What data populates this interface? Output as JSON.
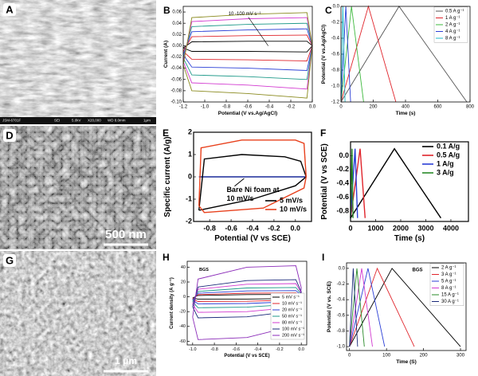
{
  "chart_data": [
    {
      "type": "image",
      "panel": "A",
      "footer": [
        "JSM-6701F",
        "SEI",
        "5.0kV",
        "X20,000",
        "WD 8.0mm",
        "1μm"
      ]
    },
    {
      "type": "line",
      "panel": "B",
      "ylabel": "Current (A)",
      "xlabel": "Potential (V vs.Ag/AgCl)",
      "annotation": "10 -100 mV s⁻¹",
      "xlim": [
        -1.2,
        0.0
      ],
      "xticks": [
        -1.2,
        {
          "value": -1.0,
          "label": "-1.0"
        },
        -0.8,
        -0.6,
        -0.4,
        -0.2,
        {
          "value": 0.0,
          "label": "0.0"
        }
      ],
      "ylim": [
        -0.1,
        0.07
      ],
      "yticks": [
        {
          "value": -0.1,
          "label": "-0.10"
        },
        -0.08,
        -0.06,
        -0.04,
        -0.02,
        {
          "value": 0,
          "label": "0.00"
        },
        0.02,
        0.04,
        0.06
      ],
      "series": [
        {
          "color": "#000000",
          "x": [
            -1.2,
            -1.12,
            -0.6,
            -0.05,
            0.0,
            -0.05,
            -0.6,
            -1.12,
            -1.2
          ],
          "values": [
            -0.004,
            0.007,
            0.008,
            0.008,
            0.0,
            -0.011,
            -0.01,
            -0.01,
            -0.004
          ]
        },
        {
          "color": "#e0242b",
          "x": [
            -1.2,
            -1.12,
            -0.6,
            -0.05,
            0.0,
            -0.05,
            -0.6,
            -1.12,
            -1.2
          ],
          "values": [
            -0.01,
            0.016,
            0.018,
            0.019,
            0.0,
            -0.027,
            -0.025,
            -0.024,
            -0.01
          ]
        },
        {
          "color": "#2b3fd6",
          "x": [
            -1.2,
            -1.12,
            -0.6,
            -0.05,
            0.0,
            -0.05,
            -0.6,
            -1.12,
            -1.2
          ],
          "values": [
            -0.016,
            0.025,
            0.028,
            0.03,
            0.0,
            -0.044,
            -0.04,
            -0.038,
            -0.016
          ]
        },
        {
          "color": "#1f9a8a",
          "x": [
            -1.2,
            -1.12,
            -0.6,
            -0.05,
            0.0,
            -0.05,
            -0.6,
            -1.12,
            -1.2
          ],
          "values": [
            -0.022,
            0.034,
            0.038,
            0.04,
            0.0,
            -0.06,
            -0.055,
            -0.052,
            -0.022
          ]
        },
        {
          "color": "#d23ad0",
          "x": [
            -1.2,
            -1.12,
            -0.6,
            -0.05,
            0.0,
            -0.05,
            -0.6,
            -1.12,
            -1.2
          ],
          "values": [
            -0.028,
            0.043,
            0.048,
            0.05,
            0.0,
            -0.077,
            -0.07,
            -0.066,
            -0.028
          ]
        },
        {
          "color": "#8a8a1e",
          "x": [
            -1.2,
            -1.12,
            -0.6,
            -0.05,
            0.0,
            -0.05,
            -0.6,
            -1.12,
            -1.2
          ],
          "values": [
            -0.034,
            0.05,
            0.056,
            0.059,
            0.0,
            -0.093,
            -0.085,
            -0.08,
            -0.034
          ]
        }
      ]
    },
    {
      "type": "line",
      "panel": "C",
      "ylabel": "Potential (V vs.Ag/AgCl)",
      "xlabel": "Time (s)",
      "legend": "upper right",
      "xlim": [
        0,
        800
      ],
      "xticks": [
        0,
        200,
        400,
        600,
        800
      ],
      "ylim": [
        -1.2,
        0.0
      ],
      "yticks": [
        -1.2,
        {
          "value": -1.0,
          "label": "-1.0"
        },
        -0.8,
        -0.6,
        -0.4,
        -0.2,
        {
          "value": 0.0,
          "label": "0.0"
        }
      ],
      "series": [
        {
          "name": "0.5 A g⁻¹",
          "color": "#555555",
          "x": [
            0,
            360,
            780
          ],
          "values": [
            -1.2,
            0.0,
            -1.2
          ]
        },
        {
          "name": "1 A g⁻¹",
          "color": "#e0242b",
          "x": [
            0,
            170,
            340
          ],
          "values": [
            -1.2,
            0.0,
            -1.2
          ]
        },
        {
          "name": "2 A g⁻¹",
          "color": "#3cb83c",
          "x": [
            0,
            65,
            140
          ],
          "values": [
            -1.2,
            0.0,
            -1.2
          ]
        },
        {
          "name": "4 A g⁻¹",
          "color": "#2b3fd6",
          "x": [
            0,
            30,
            60
          ],
          "values": [
            -1.2,
            0.0,
            -1.2
          ]
        },
        {
          "name": "8 A g⁻¹",
          "color": "#1fb8c8",
          "x": [
            0,
            12,
            25
          ],
          "values": [
            -1.2,
            0.0,
            -1.2
          ]
        }
      ]
    },
    {
      "type": "image",
      "panel": "D",
      "scale": "500 nm"
    },
    {
      "type": "line",
      "panel": "E",
      "ylabel": "Specific current (A/g)",
      "xlabel": "Potential (V vs SCE)",
      "annotation": [
        "Bare Ni foam at",
        "10 mV/s"
      ],
      "legend": "lower right",
      "xlim": [
        -0.95,
        0.15
      ],
      "xticks": [
        -0.8,
        -0.6,
        -0.4,
        -0.2,
        {
          "value": 0.0,
          "label": "0.0"
        }
      ],
      "ylim": [
        -2,
        2
      ],
      "yticks": [
        -2,
        -1,
        0,
        1,
        2
      ],
      "series": [
        {
          "color": "#1a2a9a",
          "x": [
            -0.9,
            0.1
          ],
          "values": [
            0,
            0
          ]
        },
        {
          "name": "5 mV/s",
          "color": "#000000",
          "x": [
            -0.9,
            -0.85,
            -0.5,
            -0.1,
            0.05,
            0.1,
            0.0,
            -0.4,
            -0.85,
            -0.9
          ],
          "values": [
            -1.5,
            0.8,
            1.0,
            0.9,
            0.7,
            0.0,
            -0.4,
            -1.0,
            -1.45,
            -1.5
          ]
        },
        {
          "name": "10 mV/s",
          "color": "#e8401c",
          "x": [
            -0.9,
            -0.88,
            -0.5,
            0.0,
            0.08,
            0.1,
            0.08,
            -0.3,
            -0.85,
            -0.9
          ],
          "values": [
            -1.3,
            1.3,
            1.65,
            1.65,
            1.5,
            0.0,
            -0.5,
            -1.4,
            -1.6,
            -1.3
          ]
        }
      ]
    },
    {
      "type": "line",
      "panel": "F",
      "ylabel": "Potential (V vs SCE)",
      "xlabel": "Time (s)",
      "legend": "upper right",
      "xlim": [
        0,
        4700
      ],
      "xticks": [
        0,
        1000,
        2000,
        3000,
        4000
      ],
      "ylim": [
        -0.95,
        0.2
      ],
      "yticks": [
        -0.8,
        -0.6,
        -0.4,
        -0.2,
        {
          "value": 0.0,
          "label": "0.0"
        }
      ],
      "series": [
        {
          "name": "0.1 A/g",
          "color": "#000000",
          "x": [
            0,
            1750,
            3600
          ],
          "values": [
            -0.9,
            0.1,
            -0.9
          ]
        },
        {
          "name": "0.5 A/g",
          "color": "#e0242b",
          "x": [
            0,
            380,
            580
          ],
          "values": [
            -0.9,
            0.1,
            -0.9
          ]
        },
        {
          "name": "1 A/g",
          "color": "#2b3fd6",
          "x": [
            0,
            180,
            280
          ],
          "values": [
            -0.9,
            0.1,
            -0.9
          ]
        },
        {
          "name": "3 A/g",
          "color": "#2a8a2a",
          "x": [
            0,
            60,
            100
          ],
          "values": [
            -0.9,
            0.1,
            -0.9
          ]
        }
      ]
    },
    {
      "type": "image",
      "panel": "G",
      "scale": "1 μm"
    },
    {
      "type": "line",
      "panel": "H",
      "ylabel": "Current density (A g⁻¹)",
      "xlabel": "Potential (V vs SCE)",
      "annotation": "BGS",
      "legend": "lower right",
      "xlim": [
        -1.05,
        0.05
      ],
      "xticks": [
        {
          "value": -1.0,
          "label": "-1.0"
        },
        -0.8,
        -0.6,
        -0.4,
        -0.2,
        {
          "value": 0.0,
          "label": "0.0"
        }
      ],
      "ylim": [
        -65,
        48
      ],
      "yticks": [
        -60,
        -40,
        -20,
        0,
        20,
        40
      ],
      "series": [
        {
          "name": "5 mV s⁻¹",
          "color": "#000000",
          "x": [
            -1.0,
            -0.95,
            -0.5,
            -0.05,
            0.0,
            -0.05,
            -0.5,
            -0.95,
            -1.0
          ],
          "values": [
            -1.5,
            1.8,
            3,
            3.2,
            0.9,
            -2.1,
            -3,
            -3.2,
            -1.5
          ]
        },
        {
          "name": "10 mV s⁻¹",
          "color": "#e0242b",
          "x": [
            -1.0,
            -0.95,
            -0.5,
            -0.05,
            0.0,
            -0.05,
            -0.5,
            -0.95,
            -1.0
          ],
          "values": [
            -3,
            3,
            5,
            5.3,
            1.5,
            -4.2,
            -6,
            -6.3,
            -3
          ]
        },
        {
          "name": "20 mV s⁻¹",
          "color": "#2b3fd6",
          "x": [
            -1.0,
            -0.95,
            -0.5,
            -0.05,
            0.0,
            -0.05,
            -0.5,
            -0.95,
            -1.0
          ],
          "values": [
            -4.5,
            4.8,
            8,
            8.4,
            2.4,
            -6.3,
            -9,
            -9.5,
            -4.5
          ]
        },
        {
          "name": "50 mV s⁻¹",
          "color": "#1f9a8a",
          "x": [
            -1.0,
            -0.95,
            -0.5,
            -0.05,
            0.0,
            -0.05,
            -0.5,
            -0.95,
            -1.0
          ],
          "values": [
            -7,
            7.2,
            12,
            12.6,
            3.6,
            -9.8,
            -14,
            -14.7,
            -7
          ]
        },
        {
          "name": "80 mV s⁻¹",
          "color": "#d23ad0",
          "x": [
            -1.0,
            -0.95,
            -0.5,
            -0.05,
            0.0,
            -0.05,
            -0.5,
            -0.95,
            -1.0
          ],
          "values": [
            -10,
            10.2,
            17,
            17.9,
            5.1,
            -14,
            -20,
            -21,
            -10
          ]
        },
        {
          "name": "100 mV s⁻¹",
          "color": "#1a2a7a",
          "x": [
            -1.0,
            -0.95,
            -0.5,
            -0.05,
            0.0,
            -0.05,
            -0.5,
            -0.95,
            -1.0
          ],
          "values": [
            -13.5,
            13.2,
            22,
            23.1,
            6.6,
            -18.9,
            -27,
            -28.4,
            -13.5
          ]
        },
        {
          "name": "200 mV s⁻¹",
          "color": "#8a2ab8",
          "x": [
            -1.0,
            -0.95,
            -0.5,
            -0.05,
            0.0,
            -0.05,
            -0.5,
            -0.95,
            -1.0
          ],
          "values": [
            -27.5,
            24,
            40,
            42,
            12,
            -38.5,
            -55,
            -57.8,
            -27.5
          ]
        }
      ]
    },
    {
      "type": "line",
      "panel": "I",
      "ylabel": "Potential (V vs. SCE)",
      "xlabel": "Time (S)",
      "annotation": "BGS",
      "legend": "upper right",
      "xlim": [
        -8,
        315
      ],
      "xticks": [
        0,
        100,
        200,
        300
      ],
      "ylim": [
        -1.05,
        0.07
      ],
      "yticks": [
        {
          "value": -1.0,
          "label": "-1.0"
        },
        -0.8,
        -0.6,
        -0.4,
        -0.2,
        {
          "value": 0.0,
          "label": "0.0"
        }
      ],
      "series": [
        {
          "name": "2 A g⁻¹",
          "color": "#000000",
          "x": [
            0,
            115,
            300
          ],
          "values": [
            -1.0,
            0.0,
            -1.0
          ]
        },
        {
          "name": "3 A g⁻¹",
          "color": "#e0242b",
          "x": [
            0,
            75,
            175
          ],
          "values": [
            -1.0,
            0.0,
            -1.0
          ]
        },
        {
          "name": "5 A g⁻¹",
          "color": "#2b3fd6",
          "x": [
            0,
            50,
            95
          ],
          "values": [
            -1.0,
            0.0,
            -1.0
          ]
        },
        {
          "name": "8 A g⁻¹",
          "color": "#d23ad0",
          "x": [
            0,
            33,
            62
          ],
          "values": [
            -1.0,
            0.0,
            -1.0
          ]
        },
        {
          "name": "15 A g⁻¹",
          "color": "#2a8a2a",
          "x": [
            0,
            20,
            40
          ],
          "values": [
            -1.0,
            0.0,
            -1.0
          ]
        },
        {
          "name": "30 A g⁻¹",
          "color": "#1a2a7a",
          "x": [
            0,
            10,
            22
          ],
          "values": [
            -1.0,
            0.0,
            -1.0
          ]
        }
      ]
    }
  ]
}
